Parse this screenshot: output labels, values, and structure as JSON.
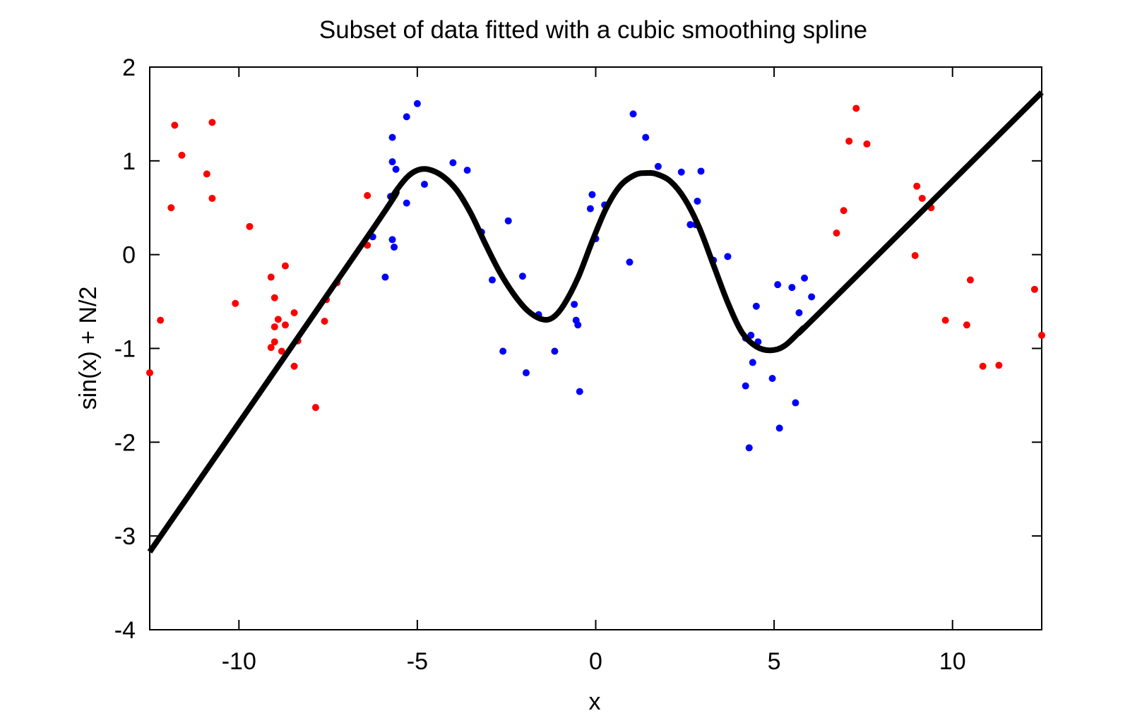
{
  "chart_data": {
    "type": "scatter",
    "title": "Subset of data fitted with a cubic smoothing spline",
    "xlabel": "x",
    "ylabel": "sin(x) + N/2",
    "xlim": [
      -12.5,
      12.5
    ],
    "ylim": [
      -4,
      2
    ],
    "xticks": [
      -10,
      -5,
      0,
      5,
      10
    ],
    "yticks": [
      -4,
      -3,
      -2,
      -1,
      0,
      1,
      2
    ],
    "grid": false,
    "colors": {
      "excluded": "#ff0000",
      "fitted": "#0000ff",
      "spline": "#000000"
    },
    "series": [
      {
        "role": "excluded",
        "points": [
          [
            -12.5,
            -1.26
          ],
          [
            -12.2,
            -0.7
          ],
          [
            -11.9,
            0.5
          ],
          [
            -11.8,
            1.38
          ],
          [
            -11.6,
            1.06
          ],
          [
            -10.9,
            0.86
          ],
          [
            -10.75,
            1.41
          ],
          [
            -10.75,
            0.6
          ],
          [
            -10.1,
            -0.52
          ],
          [
            -9.7,
            0.3
          ],
          [
            -9.1,
            -0.24
          ],
          [
            -9.1,
            -0.99
          ],
          [
            -9.0,
            -0.46
          ],
          [
            -9.0,
            -0.93
          ],
          [
            -9.0,
            -0.77
          ],
          [
            -8.9,
            -0.69
          ],
          [
            -8.8,
            -1.03
          ],
          [
            -8.7,
            -0.12
          ],
          [
            -8.7,
            -0.75
          ],
          [
            -8.45,
            -0.62
          ],
          [
            -8.45,
            -1.19
          ],
          [
            -8.35,
            -0.92
          ],
          [
            -7.85,
            -1.63
          ],
          [
            -7.6,
            -0.71
          ],
          [
            -7.55,
            -0.48
          ],
          [
            -7.25,
            -0.3
          ],
          [
            -6.4,
            0.63
          ],
          [
            -6.4,
            0.1
          ],
          [
            6.75,
            0.23
          ],
          [
            6.95,
            0.47
          ],
          [
            7.1,
            1.21
          ],
          [
            7.3,
            1.56
          ],
          [
            7.6,
            1.18
          ],
          [
            8.95,
            -0.01
          ],
          [
            9.0,
            0.73
          ],
          [
            9.15,
            0.6
          ],
          [
            9.4,
            0.5
          ],
          [
            9.8,
            -0.7
          ],
          [
            10.4,
            -0.75
          ],
          [
            10.5,
            -0.27
          ],
          [
            10.85,
            -1.19
          ],
          [
            11.3,
            -1.18
          ],
          [
            12.3,
            -0.37
          ],
          [
            12.5,
            -0.86
          ]
        ]
      },
      {
        "role": "fitted",
        "points": [
          [
            -6.25,
            0.19
          ],
          [
            -5.9,
            -0.24
          ],
          [
            -5.75,
            0.62
          ],
          [
            -5.7,
            1.25
          ],
          [
            -5.7,
            0.99
          ],
          [
            -5.7,
            0.16
          ],
          [
            -5.65,
            0.08
          ],
          [
            -5.6,
            0.91
          ],
          [
            -5.3,
            1.47
          ],
          [
            -5.3,
            0.55
          ],
          [
            -5.0,
            1.61
          ],
          [
            -4.8,
            0.75
          ],
          [
            -4.0,
            0.98
          ],
          [
            -3.6,
            0.9
          ],
          [
            -3.2,
            0.24
          ],
          [
            -2.9,
            -0.27
          ],
          [
            -2.45,
            0.36
          ],
          [
            -2.6,
            -1.03
          ],
          [
            -2.05,
            -0.23
          ],
          [
            -1.95,
            -1.26
          ],
          [
            -1.6,
            -0.64
          ],
          [
            -1.15,
            -1.03
          ],
          [
            -0.6,
            -0.53
          ],
          [
            -0.55,
            -0.7
          ],
          [
            -0.5,
            -0.75
          ],
          [
            -0.45,
            -1.46
          ],
          [
            -0.15,
            0.49
          ],
          [
            -0.1,
            0.64
          ],
          [
            0.0,
            0.17
          ],
          [
            0.25,
            0.53
          ],
          [
            0.95,
            -0.08
          ],
          [
            1.05,
            1.5
          ],
          [
            1.4,
            1.25
          ],
          [
            1.75,
            0.94
          ],
          [
            2.4,
            0.88
          ],
          [
            2.65,
            0.32
          ],
          [
            2.8,
            0.32
          ],
          [
            2.85,
            0.57
          ],
          [
            2.95,
            0.89
          ],
          [
            3.3,
            -0.06
          ],
          [
            3.7,
            -0.02
          ],
          [
            4.2,
            -0.89
          ],
          [
            4.2,
            -1.4
          ],
          [
            4.3,
            -2.06
          ],
          [
            4.35,
            -0.86
          ],
          [
            4.4,
            -1.15
          ],
          [
            4.5,
            -0.55
          ],
          [
            4.55,
            -0.93
          ],
          [
            4.95,
            -1.32
          ],
          [
            5.1,
            -0.32
          ],
          [
            5.15,
            -1.85
          ],
          [
            5.5,
            -0.35
          ],
          [
            5.6,
            -1.58
          ],
          [
            5.7,
            -0.62
          ],
          [
            5.85,
            -0.25
          ],
          [
            6.05,
            -0.45
          ]
        ]
      }
    ],
    "spline": [
      [
        -12.5,
        -3.17
      ],
      [
        -6.2,
        0.3
      ],
      [
        -5.7,
        0.62
      ],
      [
        -5.3,
        0.82
      ],
      [
        -5.0,
        0.9
      ],
      [
        -4.7,
        0.91
      ],
      [
        -4.3,
        0.84
      ],
      [
        -3.9,
        0.69
      ],
      [
        -3.5,
        0.44
      ],
      [
        -3.1,
        0.12
      ],
      [
        -2.7,
        -0.18
      ],
      [
        -2.3,
        -0.42
      ],
      [
        -1.9,
        -0.6
      ],
      [
        -1.5,
        -0.69
      ],
      [
        -1.2,
        -0.67
      ],
      [
        -0.9,
        -0.54
      ],
      [
        -0.5,
        -0.25
      ],
      [
        -0.1,
        0.14
      ],
      [
        0.3,
        0.5
      ],
      [
        0.7,
        0.74
      ],
      [
        1.1,
        0.85
      ],
      [
        1.4,
        0.87
      ],
      [
        1.7,
        0.86
      ],
      [
        2.1,
        0.78
      ],
      [
        2.5,
        0.59
      ],
      [
        2.9,
        0.29
      ],
      [
        3.3,
        -0.11
      ],
      [
        3.7,
        -0.51
      ],
      [
        4.1,
        -0.83
      ],
      [
        4.5,
        -0.98
      ],
      [
        4.9,
        -1.02
      ],
      [
        5.3,
        -0.97
      ],
      [
        5.8,
        -0.79
      ],
      [
        6.3,
        -0.61
      ],
      [
        12.5,
        1.73
      ]
    ]
  }
}
